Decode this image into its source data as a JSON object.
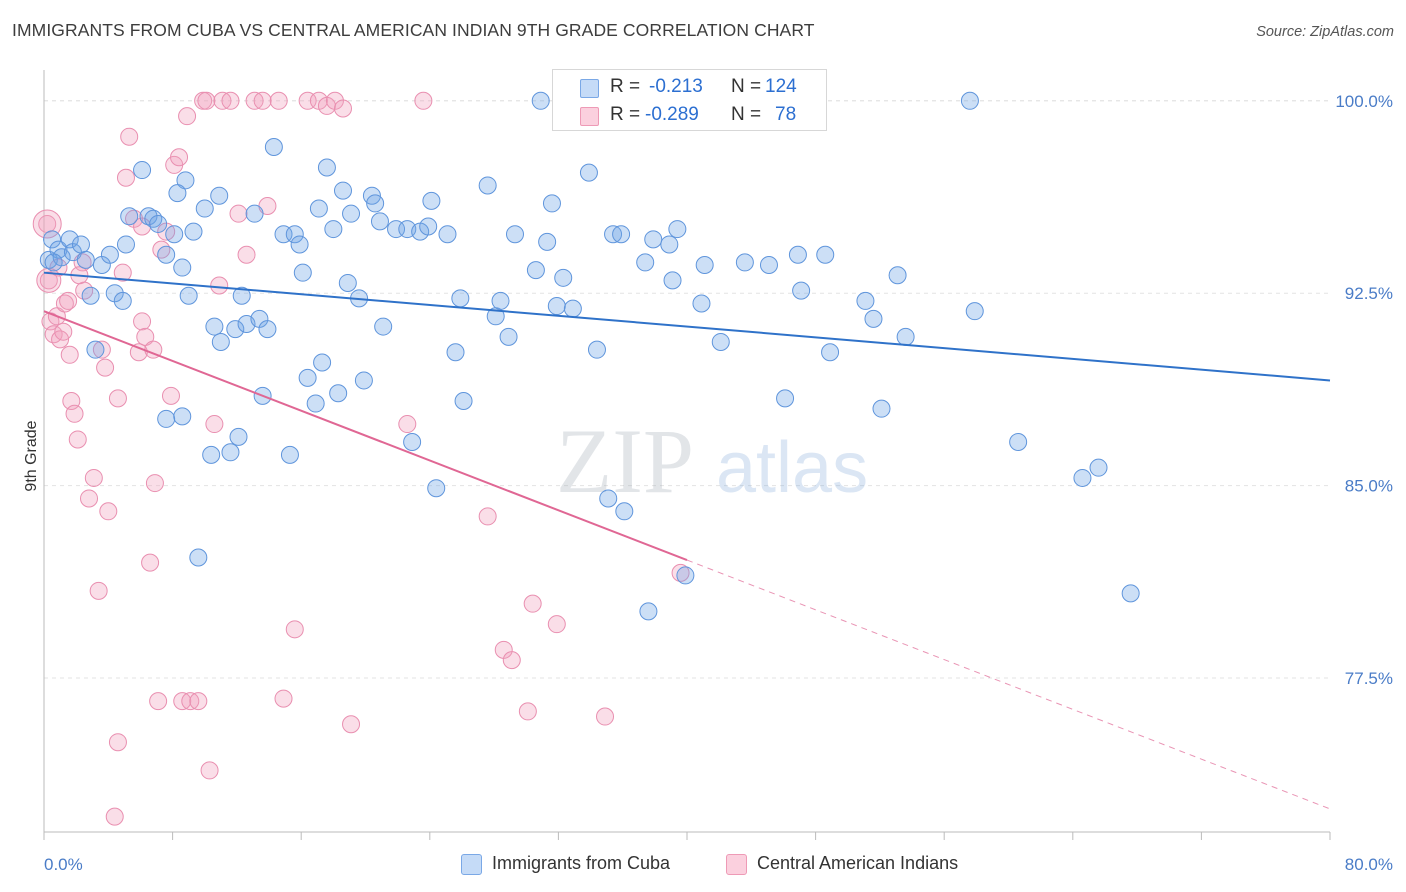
{
  "title": "IMMIGRANTS FROM CUBA VS CENTRAL AMERICAN INDIAN 9TH GRADE CORRELATION CHART",
  "source": "Source: ZipAtlas.com",
  "watermark": {
    "zip": "ZIP",
    "atlas": "atlas"
  },
  "legend": {
    "r_label": "R =",
    "n_label": "N =",
    "rows": [
      {
        "r": "-0.213",
        "n": "124"
      },
      {
        "r": "-0.289",
        "n": "78"
      }
    ]
  },
  "chart_data": {
    "type": "scatter",
    "title": "IMMIGRANTS FROM CUBA VS CENTRAL AMERICAN INDIAN 9TH GRADE CORRELATION CHART",
    "xlabel": "",
    "ylabel": "9th Grade",
    "xlim": [
      0,
      80
    ],
    "ylim": [
      71.5,
      101.2
    ],
    "x_tick_labels": [
      "0.0%",
      "80.0%"
    ],
    "y_ticks": [
      77.5,
      85.0,
      92.5,
      100.0
    ],
    "y_tick_labels": [
      "77.5%",
      "85.0%",
      "92.5%",
      "100.0%"
    ],
    "grid": true,
    "legend_position": "top-center",
    "colors": {
      "cuba": "#6ea3e6",
      "cuba_line": "#2f72c9",
      "cai": "#f2a0bc",
      "cai_line": "#e06794"
    },
    "series": [
      {
        "name": "Immigrants from Cuba",
        "r": -0.213,
        "n": 124,
        "trend": {
          "x": [
            0,
            80
          ],
          "y": [
            93.3,
            89.1
          ]
        },
        "points": [
          [
            0.3,
            93.8
          ],
          [
            0.5,
            94.6
          ],
          [
            0.9,
            94.2
          ],
          [
            1.1,
            93.9
          ],
          [
            1.6,
            94.6
          ],
          [
            1.8,
            94.1
          ],
          [
            2.3,
            94.4
          ],
          [
            2.6,
            93.8
          ],
          [
            2.9,
            92.4
          ],
          [
            3.2,
            90.3
          ],
          [
            3.6,
            93.6
          ],
          [
            4.1,
            94.0
          ],
          [
            4.4,
            92.5
          ],
          [
            4.9,
            92.2
          ],
          [
            5.1,
            94.4
          ],
          [
            5.3,
            95.5
          ],
          [
            6.1,
            97.3
          ],
          [
            6.5,
            95.5
          ],
          [
            6.8,
            95.4
          ],
          [
            7.1,
            95.2
          ],
          [
            7.6,
            94.0
          ],
          [
            8.1,
            94.8
          ],
          [
            8.6,
            93.5
          ],
          [
            8.8,
            96.9
          ],
          [
            8.3,
            96.4
          ],
          [
            9.3,
            94.9
          ],
          [
            7.6,
            87.6
          ],
          [
            8.6,
            87.7
          ],
          [
            9.0,
            92.4
          ],
          [
            9.6,
            82.2
          ],
          [
            10.0,
            95.8
          ],
          [
            10.4,
            86.2
          ],
          [
            10.6,
            91.2
          ],
          [
            10.9,
            96.3
          ],
          [
            11.0,
            90.6
          ],
          [
            11.6,
            86.3
          ],
          [
            11.9,
            91.1
          ],
          [
            12.1,
            86.9
          ],
          [
            12.3,
            92.4
          ],
          [
            12.6,
            91.3
          ],
          [
            13.1,
            95.6
          ],
          [
            13.4,
            91.5
          ],
          [
            13.6,
            88.5
          ],
          [
            13.9,
            91.1
          ],
          [
            14.3,
            98.2
          ],
          [
            14.9,
            94.8
          ],
          [
            15.3,
            86.2
          ],
          [
            15.6,
            94.8
          ],
          [
            15.9,
            94.4
          ],
          [
            16.1,
            93.3
          ],
          [
            16.4,
            89.2
          ],
          [
            16.9,
            88.2
          ],
          [
            17.1,
            95.8
          ],
          [
            17.6,
            97.4
          ],
          [
            17.3,
            89.8
          ],
          [
            18.0,
            95.0
          ],
          [
            18.3,
            88.6
          ],
          [
            18.6,
            96.5
          ],
          [
            18.9,
            92.9
          ],
          [
            19.1,
            95.6
          ],
          [
            19.6,
            92.3
          ],
          [
            19.9,
            89.1
          ],
          [
            20.4,
            96.3
          ],
          [
            20.9,
            95.3
          ],
          [
            20.6,
            96.0
          ],
          [
            21.1,
            91.2
          ],
          [
            21.9,
            95.0
          ],
          [
            22.6,
            95.0
          ],
          [
            22.9,
            86.7
          ],
          [
            23.4,
            94.9
          ],
          [
            23.9,
            95.1
          ],
          [
            24.1,
            96.1
          ],
          [
            24.4,
            84.9
          ],
          [
            25.1,
            94.8
          ],
          [
            25.6,
            90.2
          ],
          [
            25.9,
            92.3
          ],
          [
            26.1,
            88.3
          ],
          [
            27.6,
            96.7
          ],
          [
            28.1,
            91.6
          ],
          [
            28.4,
            92.2
          ],
          [
            28.9,
            90.8
          ],
          [
            29.3,
            94.8
          ],
          [
            30.6,
            93.4
          ],
          [
            30.9,
            100.0
          ],
          [
            31.3,
            94.5
          ],
          [
            31.6,
            96.0
          ],
          [
            31.9,
            92.0
          ],
          [
            32.3,
            93.1
          ],
          [
            32.9,
            91.9
          ],
          [
            33.9,
            97.2
          ],
          [
            34.4,
            90.3
          ],
          [
            35.1,
            84.5
          ],
          [
            35.4,
            94.8
          ],
          [
            35.9,
            94.8
          ],
          [
            36.1,
            84.0
          ],
          [
            37.4,
            93.7
          ],
          [
            37.6,
            80.1
          ],
          [
            37.9,
            94.6
          ],
          [
            38.9,
            94.4
          ],
          [
            39.4,
            95.0
          ],
          [
            39.1,
            93.0
          ],
          [
            39.9,
            81.5
          ],
          [
            40.9,
            92.1
          ],
          [
            41.1,
            93.6
          ],
          [
            42.1,
            90.6
          ],
          [
            43.6,
            93.7
          ],
          [
            45.1,
            93.6
          ],
          [
            46.1,
            88.4
          ],
          [
            46.9,
            94.0
          ],
          [
            47.1,
            92.6
          ],
          [
            48.6,
            94.0
          ],
          [
            48.9,
            90.2
          ],
          [
            51.1,
            92.2
          ],
          [
            52.1,
            88.0
          ],
          [
            51.6,
            91.5
          ],
          [
            53.1,
            93.2
          ],
          [
            53.6,
            90.8
          ],
          [
            57.6,
            100.0
          ],
          [
            57.9,
            91.8
          ],
          [
            60.6,
            86.7
          ],
          [
            64.6,
            85.3
          ],
          [
            65.6,
            85.7
          ],
          [
            67.6,
            80.8
          ],
          [
            0.6,
            93.7
          ]
        ]
      },
      {
        "name": "Central American Indians",
        "r": -0.289,
        "n": 78,
        "trend": {
          "x": [
            0,
            40
          ],
          "y": [
            91.8,
            82.1
          ]
        },
        "trend_extension": {
          "x": [
            40,
            80
          ],
          "y": [
            82.1,
            72.4
          ]
        },
        "points": [
          [
            0.2,
            95.2
          ],
          [
            0.3,
            93.0
          ],
          [
            0.4,
            91.4
          ],
          [
            0.6,
            90.9
          ],
          [
            0.8,
            91.6
          ],
          [
            1.0,
            90.7
          ],
          [
            1.2,
            91.0
          ],
          [
            1.3,
            92.1
          ],
          [
            1.6,
            90.1
          ],
          [
            1.7,
            88.3
          ],
          [
            1.9,
            87.8
          ],
          [
            2.1,
            86.8
          ],
          [
            2.4,
            93.7
          ],
          [
            2.5,
            92.6
          ],
          [
            2.8,
            84.5
          ],
          [
            3.1,
            85.3
          ],
          [
            3.4,
            80.9
          ],
          [
            3.6,
            90.3
          ],
          [
            3.8,
            89.6
          ],
          [
            4.0,
            84.0
          ],
          [
            4.4,
            72.1
          ],
          [
            4.6,
            75.0
          ],
          [
            4.6,
            88.4
          ],
          [
            4.9,
            93.3
          ],
          [
            5.1,
            97.0
          ],
          [
            5.3,
            98.6
          ],
          [
            5.6,
            95.4
          ],
          [
            5.9,
            90.2
          ],
          [
            6.1,
            95.1
          ],
          [
            6.1,
            91.4
          ],
          [
            6.3,
            90.8
          ],
          [
            6.6,
            82.0
          ],
          [
            6.8,
            90.3
          ],
          [
            6.9,
            85.1
          ],
          [
            7.1,
            76.6
          ],
          [
            7.3,
            94.2
          ],
          [
            7.6,
            94.9
          ],
          [
            7.9,
            88.5
          ],
          [
            8.1,
            97.5
          ],
          [
            8.4,
            97.8
          ],
          [
            8.6,
            76.6
          ],
          [
            8.9,
            99.4
          ],
          [
            9.1,
            76.6
          ],
          [
            9.6,
            76.6
          ],
          [
            9.9,
            100.0
          ],
          [
            10.1,
            100.0
          ],
          [
            10.3,
            73.9
          ],
          [
            10.6,
            87.4
          ],
          [
            10.9,
            92.8
          ],
          [
            11.1,
            100.0
          ],
          [
            11.6,
            100.0
          ],
          [
            12.1,
            95.6
          ],
          [
            12.6,
            94.0
          ],
          [
            13.1,
            100.0
          ],
          [
            13.6,
            100.0
          ],
          [
            13.9,
            95.9
          ],
          [
            14.6,
            100.0
          ],
          [
            14.9,
            76.7
          ],
          [
            15.6,
            79.4
          ],
          [
            16.4,
            100.0
          ],
          [
            17.1,
            100.0
          ],
          [
            17.6,
            99.8
          ],
          [
            18.1,
            100.0
          ],
          [
            18.6,
            99.7
          ],
          [
            19.1,
            75.7
          ],
          [
            22.6,
            87.4
          ],
          [
            23.6,
            100.0
          ],
          [
            27.6,
            83.8
          ],
          [
            28.6,
            78.6
          ],
          [
            29.1,
            78.2
          ],
          [
            30.1,
            76.2
          ],
          [
            30.4,
            80.4
          ],
          [
            31.9,
            79.6
          ],
          [
            34.9,
            76.0
          ],
          [
            39.6,
            81.6
          ],
          [
            0.9,
            93.5
          ],
          [
            2.2,
            93.2
          ],
          [
            1.5,
            92.2
          ]
        ]
      }
    ]
  },
  "bottom_legend": {
    "item1": "Immigrants from Cuba",
    "item2": "Central American Indians"
  }
}
